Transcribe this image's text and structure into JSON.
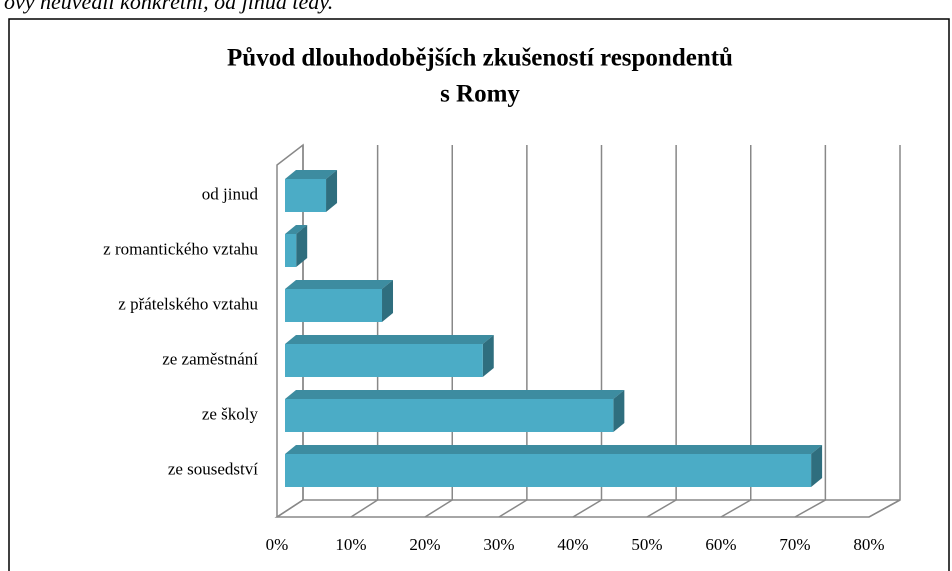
{
  "top_text": "ovy neuvedli konkrétní, od jinud tedy.",
  "chart_data": {
    "type": "bar3d_horizontal",
    "title_lines": [
      "Původ dlouhodobějších zkušeností respondentů",
      "s Romy"
    ],
    "categories": [
      "od jinud",
      "z romantického vztahu",
      "z přátelského vztahu",
      "ze zaměstnání",
      "ze školy",
      "ze sousedství"
    ],
    "values": [
      5.5,
      1.5,
      13,
      26.5,
      44,
      70.5
    ],
    "color": "#4bacc6",
    "xlim": [
      0,
      80
    ],
    "xticks": [
      {
        "value": 0,
        "label": "0%"
      },
      {
        "value": 10,
        "label": "10%"
      },
      {
        "value": 20,
        "label": "20%"
      },
      {
        "value": 30,
        "label": "30%"
      },
      {
        "value": 40,
        "label": "40%"
      },
      {
        "value": 50,
        "label": "50%"
      },
      {
        "value": 60,
        "label": "60%"
      },
      {
        "value": 70,
        "label": "70%"
      },
      {
        "value": 80,
        "label": "80%"
      }
    ],
    "grid": true
  }
}
